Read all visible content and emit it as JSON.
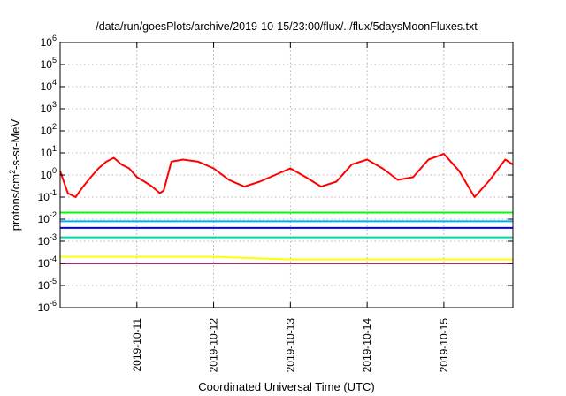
{
  "chart_data": {
    "type": "line",
    "title": "/data/run/goesPlots/archive/2019-10-15/23:00/flux/../flux/5daysMoonFluxes.txt",
    "xlabel": "Coordinated Universal Time (UTC)",
    "ylabel": {
      "base": "protons/cm",
      "sup": "2",
      "rest": "-s-sr-MeV"
    },
    "yscale": "log",
    "ylim": [
      1e-06,
      1000000.0
    ],
    "xlim_days": [
      0,
      5.9
    ],
    "y_ticks": [
      {
        "base": "10",
        "exp": "-6",
        "value": 1e-06
      },
      {
        "base": "10",
        "exp": "-5",
        "value": 1e-05
      },
      {
        "base": "10",
        "exp": "-4",
        "value": 0.0001
      },
      {
        "base": "10",
        "exp": "-3",
        "value": 0.001
      },
      {
        "base": "10",
        "exp": "-2",
        "value": 0.01
      },
      {
        "base": "10",
        "exp": "-1",
        "value": 0.1
      },
      {
        "base": "10",
        "exp": "0",
        "value": 1
      },
      {
        "base": "10",
        "exp": "1",
        "value": 10
      },
      {
        "base": "10",
        "exp": "2",
        "value": 100
      },
      {
        "base": "10",
        "exp": "3",
        "value": 1000
      },
      {
        "base": "10",
        "exp": "4",
        "value": 10000
      },
      {
        "base": "10",
        "exp": "5",
        "value": 100000
      },
      {
        "base": "10",
        "exp": "6",
        "value": 1000000
      }
    ],
    "x_ticks": [
      {
        "label": "2019-10-11",
        "day": 1
      },
      {
        "label": "2019-10-12",
        "day": 2
      },
      {
        "label": "2019-10-13",
        "day": 3
      },
      {
        "label": "2019-10-14",
        "day": 4
      },
      {
        "label": "2019-10-15",
        "day": 5
      }
    ],
    "grid": true,
    "series": [
      {
        "color": "#ff0000",
        "x": [
          0,
          0.1,
          0.2,
          0.3,
          0.4,
          0.5,
          0.6,
          0.7,
          0.8,
          0.9,
          1.0,
          1.1,
          1.2,
          1.3,
          1.35,
          1.45,
          1.6,
          1.8,
          2.0,
          2.2,
          2.4,
          2.6,
          2.8,
          3.0,
          3.2,
          3.4,
          3.6,
          3.8,
          4.0,
          4.2,
          4.4,
          4.6,
          4.8,
          5.0,
          5.2,
          5.4,
          5.6,
          5.8,
          5.9
        ],
        "y": [
          1.5,
          0.15,
          0.1,
          0.3,
          0.8,
          2,
          4,
          6,
          3,
          2,
          0.8,
          0.5,
          0.3,
          0.15,
          0.2,
          4,
          5,
          4,
          2,
          0.6,
          0.3,
          0.5,
          1,
          2,
          0.8,
          0.3,
          0.5,
          3,
          5,
          2,
          0.6,
          0.8,
          5,
          9,
          1.5,
          0.1,
          0.6,
          5,
          3
        ]
      },
      {
        "color": "#00ff00",
        "x": [
          0,
          1,
          2,
          3,
          4,
          5,
          5.9
        ],
        "y": [
          0.02,
          0.02,
          0.02,
          0.02,
          0.02,
          0.02,
          0.02
        ]
      },
      {
        "color": "#00aaff",
        "x": [
          0,
          1,
          2,
          3,
          4,
          5,
          5.9
        ],
        "y": [
          0.008,
          0.008,
          0.008,
          0.008,
          0.008,
          0.008,
          0.008
        ]
      },
      {
        "color": "#0000ff",
        "x": [
          0,
          1,
          2,
          3,
          4,
          5,
          5.9
        ],
        "y": [
          0.004,
          0.004,
          0.004,
          0.004,
          0.004,
          0.004,
          0.004
        ]
      },
      {
        "color": "#00d8a0",
        "x": [
          0,
          1,
          2,
          3,
          4,
          5,
          5.9
        ],
        "y": [
          0.0015,
          0.0015,
          0.0015,
          0.0015,
          0.0015,
          0.0015,
          0.0015
        ]
      },
      {
        "color": "#ffff00",
        "x": [
          0,
          1,
          2,
          3,
          4,
          5,
          5.9
        ],
        "y": [
          0.0002,
          0.0002,
          0.0002,
          0.00015,
          0.00015,
          0.00015,
          0.00015
        ]
      },
      {
        "color": "#993366",
        "x": [
          0,
          1,
          2,
          3,
          4,
          5,
          5.9
        ],
        "y": [
          0.0001,
          0.0001,
          0.0001,
          0.0001,
          0.0001,
          0.0001,
          0.0001
        ]
      }
    ]
  }
}
